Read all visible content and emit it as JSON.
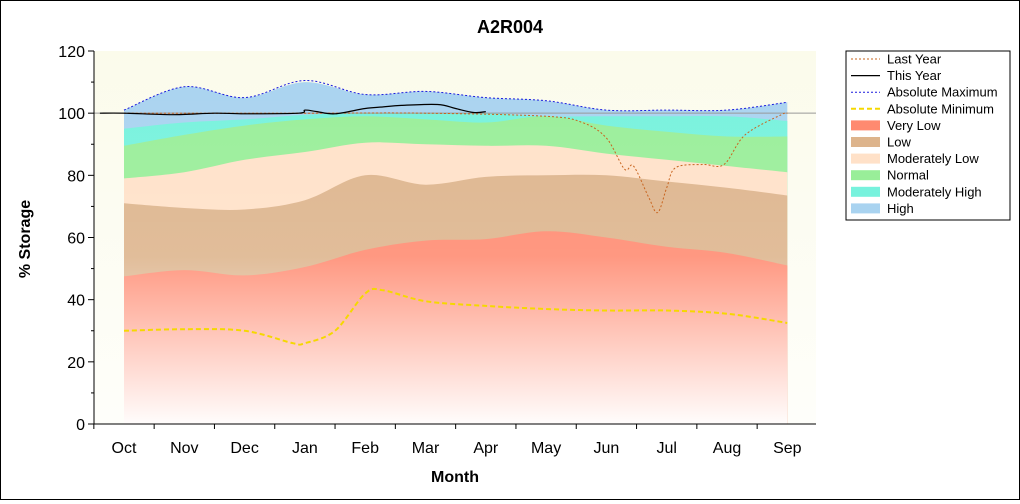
{
  "chart_data": {
    "type": "area",
    "title": "A2R004",
    "xlabel": "Month",
    "ylabel": "% Storage",
    "categories": [
      "Oct",
      "Nov",
      "Dec",
      "Jan",
      "Feb",
      "Mar",
      "Apr",
      "May",
      "Jun",
      "Jul",
      "Aug",
      "Sep"
    ],
    "ylim": [
      0,
      120
    ],
    "yticks": [
      0,
      20,
      40,
      60,
      80,
      100,
      120
    ],
    "grid": false,
    "legend_position": "right",
    "reference_line": 100,
    "bands": [
      {
        "name": "Very Low",
        "color": "#FF8A70",
        "upper": [
          47.5,
          49.5,
          47.8,
          50.5,
          56,
          59,
          59.5,
          62,
          60,
          57,
          55,
          51
        ]
      },
      {
        "name": "Low",
        "color": "#DDB48C",
        "upper": [
          71,
          69.5,
          69,
          72,
          80,
          77,
          79.5,
          80,
          80,
          78,
          76,
          73.5
        ]
      },
      {
        "name": "Moderately Low",
        "color": "#FFE1C8",
        "upper": [
          79,
          81,
          85,
          87.5,
          90.5,
          90,
          89.5,
          89.5,
          87,
          85,
          83,
          81
        ]
      },
      {
        "name": "Normal",
        "color": "#99EE99",
        "upper": [
          89.5,
          93,
          96,
          98,
          99,
          98,
          97,
          99,
          96,
          94,
          92.5,
          92.5
        ]
      },
      {
        "name": "Moderately High",
        "color": "#77F2DD",
        "upper": [
          95,
          97,
          98,
          99.5,
          100,
          100,
          100,
          99,
          99,
          99,
          99,
          97.5
        ]
      },
      {
        "name": "High",
        "color": "#A9D3F0",
        "upper": [
          101,
          108.5,
          105,
          110,
          106,
          107,
          105,
          104,
          101,
          101,
          101,
          103.5
        ]
      }
    ],
    "series": [
      {
        "name": "Last Year",
        "color": "#C8641E",
        "style": "dotted",
        "points": [
          [
            0,
            100
          ],
          [
            3,
            100
          ],
          [
            5,
            100
          ],
          [
            7,
            99
          ],
          [
            7.6,
            97
          ],
          [
            8.0,
            92
          ],
          [
            8.3,
            82
          ],
          [
            8.45,
            83
          ],
          [
            8.7,
            73
          ],
          [
            8.85,
            68
          ],
          [
            9.0,
            76
          ],
          [
            9.15,
            82.5
          ],
          [
            9.6,
            83.5
          ],
          [
            9.95,
            83.5
          ],
          [
            10.3,
            93
          ],
          [
            10.9,
            99.5
          ],
          [
            11,
            100
          ]
        ]
      },
      {
        "name": "This Year",
        "color": "#000000",
        "style": "solid",
        "points": [
          [
            -0.4,
            100
          ],
          [
            0,
            100
          ],
          [
            0.8,
            99.5
          ],
          [
            1.5,
            100
          ],
          [
            2,
            99.8
          ],
          [
            2.9,
            100
          ],
          [
            3.0,
            101
          ],
          [
            3.2,
            100.5
          ],
          [
            3.5,
            99.8
          ],
          [
            4,
            101.5
          ],
          [
            4.3,
            102
          ],
          [
            4.6,
            102.5
          ],
          [
            5.2,
            102.8
          ],
          [
            5.5,
            101.5
          ],
          [
            5.8,
            100.2
          ],
          [
            6,
            100.5
          ]
        ]
      },
      {
        "name": "Absolute Maximum",
        "color": "#1A1ADD",
        "style": "dotted",
        "points": [
          [
            0,
            101
          ],
          [
            1,
            108.5
          ],
          [
            2,
            105
          ],
          [
            3,
            110.5
          ],
          [
            4,
            106
          ],
          [
            5,
            107
          ],
          [
            6,
            105
          ],
          [
            7,
            104
          ],
          [
            8,
            101
          ],
          [
            9,
            101
          ],
          [
            10,
            101
          ],
          [
            11,
            103.5
          ]
        ]
      },
      {
        "name": "Absolute Minimum",
        "color": "#F5D800",
        "style": "dashed",
        "points": [
          [
            0,
            30
          ],
          [
            1,
            30.5
          ],
          [
            2,
            30
          ],
          [
            2.8,
            26
          ],
          [
            3,
            26
          ],
          [
            3.5,
            30
          ],
          [
            4,
            42
          ],
          [
            4.3,
            43
          ],
          [
            5,
            39.5
          ],
          [
            6,
            38
          ],
          [
            7,
            37
          ],
          [
            8,
            36.5
          ],
          [
            9,
            36.5
          ],
          [
            10,
            35.5
          ],
          [
            11,
            32.5
          ]
        ]
      }
    ],
    "legend": [
      "Last Year",
      "This Year",
      "Absolute Maximum",
      "Absolute Minimum",
      "Very Low",
      "Low",
      "Moderately Low",
      "Normal",
      "Moderately High",
      "High"
    ]
  }
}
